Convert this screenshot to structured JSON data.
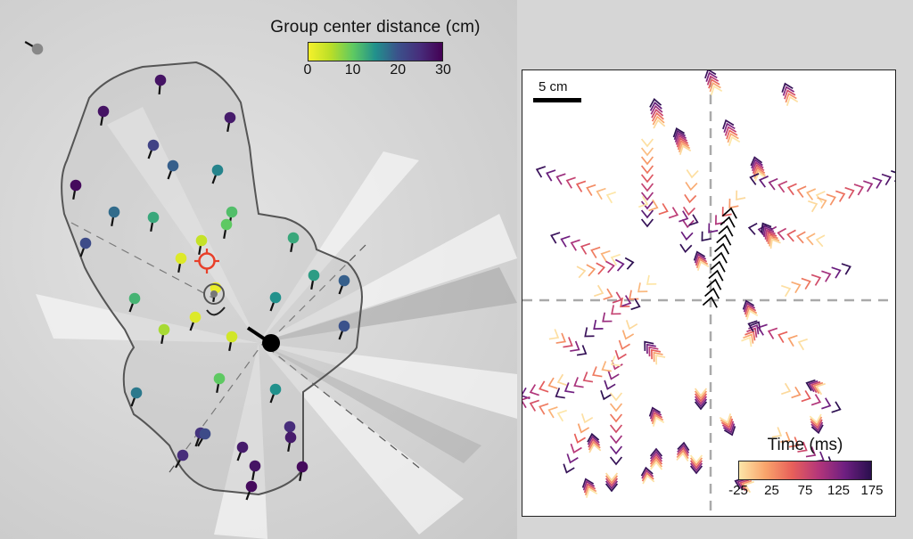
{
  "distance_legend": {
    "title": "Group center distance (cm)",
    "ticks": [
      "0",
      "10",
      "20",
      "30"
    ],
    "colors": [
      "#f5f12a",
      "#b9de28",
      "#5ec962",
      "#21918c",
      "#3b528b",
      "#472d7b",
      "#440154"
    ]
  },
  "scalebar": {
    "label": "5 cm"
  },
  "time_legend": {
    "title": "Time (ms)",
    "ticks": [
      "-25",
      "25",
      "75",
      "125",
      "175"
    ],
    "colors": [
      "#fde6a8",
      "#f9a46b",
      "#e8605a",
      "#b5367a",
      "#6e1f81",
      "#2a0f4e"
    ]
  },
  "accent": {
    "highlight_ring": "#e8402a",
    "predator_arrow": "#000000"
  }
}
